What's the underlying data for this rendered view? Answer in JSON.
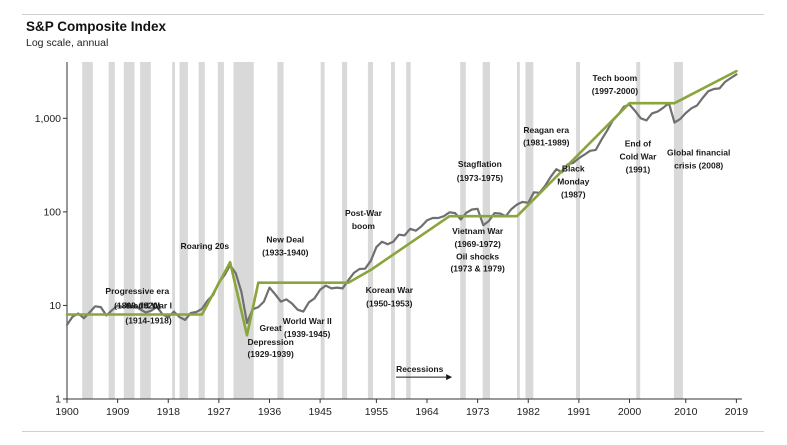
{
  "chart_data": {
    "type": "line",
    "title": "S&P Composite Index",
    "subtitle": "Log scale, annual",
    "xlim": [
      1900,
      2020
    ],
    "ylim": [
      1,
      4000
    ],
    "yscale": "log",
    "x_ticks": [
      1900,
      1909,
      1918,
      1927,
      1936,
      1945,
      1955,
      1964,
      1973,
      1982,
      1991,
      2000,
      2010,
      2019
    ],
    "y_ticks": [
      {
        "value": 1,
        "label": "1"
      },
      {
        "value": 10,
        "label": "10"
      },
      {
        "value": 100,
        "label": "100"
      },
      {
        "value": 1000,
        "label": "1,000"
      }
    ],
    "recessions_label": "Recessions",
    "recessions": [
      [
        1902.7,
        1904.6
      ],
      [
        1907.4,
        1908.5
      ],
      [
        1910.1,
        1912.0
      ],
      [
        1913.0,
        1914.9
      ],
      [
        1918.7,
        1919.2
      ],
      [
        1920.0,
        1921.5
      ],
      [
        1923.4,
        1924.5
      ],
      [
        1926.8,
        1927.9
      ],
      [
        1929.6,
        1933.2
      ],
      [
        1937.4,
        1938.5
      ],
      [
        1945.1,
        1945.8
      ],
      [
        1948.9,
        1949.8
      ],
      [
        1953.5,
        1954.4
      ],
      [
        1957.6,
        1958.3
      ],
      [
        1960.3,
        1961.1
      ],
      [
        1969.9,
        1970.9
      ],
      [
        1973.9,
        1975.2
      ],
      [
        1980.0,
        1980.5
      ],
      [
        1981.5,
        1982.9
      ],
      [
        1990.5,
        1991.2
      ],
      [
        2001.2,
        2001.9
      ],
      [
        2007.9,
        2009.5
      ]
    ],
    "series": [
      {
        "color": "#6f6f6f",
        "x": [
          1900,
          1901,
          1902,
          1903,
          1904,
          1905,
          1906,
          1907,
          1908,
          1909,
          1910,
          1911,
          1912,
          1913,
          1914,
          1915,
          1916,
          1917,
          1918,
          1919,
          1920,
          1921,
          1922,
          1923,
          1924,
          1925,
          1926,
          1927,
          1928,
          1929,
          1930,
          1931,
          1932,
          1933,
          1934,
          1935,
          1936,
          1937,
          1938,
          1939,
          1940,
          1941,
          1942,
          1943,
          1944,
          1945,
          1946,
          1947,
          1948,
          1949,
          1950,
          1951,
          1952,
          1953,
          1954,
          1955,
          1956,
          1957,
          1958,
          1959,
          1960,
          1961,
          1962,
          1963,
          1964,
          1965,
          1966,
          1967,
          1968,
          1969,
          1970,
          1971,
          1972,
          1973,
          1974,
          1975,
          1976,
          1977,
          1978,
          1979,
          1980,
          1981,
          1982,
          1983,
          1984,
          1985,
          1986,
          1987,
          1988,
          1989,
          1990,
          1991,
          1992,
          1993,
          1994,
          1995,
          1996,
          1997,
          1998,
          1999,
          2000,
          2001,
          2002,
          2003,
          2004,
          2005,
          2006,
          2007,
          2008,
          2009,
          2010,
          2011,
          2012,
          2013,
          2014,
          2015,
          2016,
          2017,
          2018,
          2019
        ],
        "values": [
          6.2,
          7.6,
          8.2,
          7.3,
          8.4,
          9.8,
          9.6,
          7.8,
          8.9,
          10,
          9.6,
          9.8,
          9.9,
          9.1,
          8.4,
          8.8,
          9.7,
          8,
          7.5,
          8.6,
          7.5,
          7,
          8.3,
          8.5,
          9.2,
          11.3,
          13,
          17.7,
          21,
          27,
          22,
          14,
          6.5,
          9.1,
          9.6,
          11,
          15.5,
          13.2,
          11,
          11.6,
          10.5,
          9,
          8.6,
          10.8,
          11.9,
          14.7,
          16.3,
          15.2,
          15.5,
          15.2,
          18.6,
          22.3,
          24.5,
          24.7,
          30,
          42,
          48,
          45,
          48,
          57,
          56,
          66,
          63,
          70,
          81,
          86,
          86,
          90,
          99,
          97,
          83,
          98,
          106,
          108,
          72,
          80,
          97,
          96,
          90,
          107,
          120,
          128,
          125,
          162,
          160,
          190,
          238,
          286,
          265,
          322,
          335,
          375,
          410,
          450,
          460,
          590,
          735,
          940,
          1100,
          1330,
          1400,
          1200,
          1000,
          950,
          1130,
          1180,
          1300,
          1450,
          900,
          980,
          1140,
          1280,
          1370,
          1650,
          1950,
          2060,
          2090,
          2450,
          2700,
          2950
        ]
      },
      {
        "color": "#8aa53c",
        "x": [
          1900,
          1924,
          1929,
          1932,
          1934,
          1950,
          1954,
          1968,
          1980,
          2000,
          2008,
          2019
        ],
        "values": [
          8,
          8,
          29,
          4.8,
          17.5,
          17.5,
          24,
          90,
          90,
          1450,
          1450,
          3200
        ]
      }
    ],
    "annotations": [
      {
        "text": "Progressive era",
        "x": 1912.5,
        "y": 13.2
      },
      {
        "text": "(1890-1920)",
        "x": 1912.5,
        "y": 9.3
      },
      {
        "text": "World War I",
        "x": 1914.5,
        "y": 9.3
      },
      {
        "text": "(1914-1918)",
        "x": 1914.5,
        "y": 6.4
      },
      {
        "text": "Roaring 20s",
        "x": 1924.5,
        "y": 40
      },
      {
        "text": "New Deal",
        "x": 1938.8,
        "y": 47
      },
      {
        "text": "(1933-1940)",
        "x": 1938.8,
        "y": 34
      },
      {
        "text": "Great",
        "x": 1936.2,
        "y": 5.3
      },
      {
        "text": "Depression",
        "x": 1936.2,
        "y": 3.8
      },
      {
        "text": "(1929-1939)",
        "x": 1936.2,
        "y": 2.8
      },
      {
        "text": "World War II",
        "x": 1942.7,
        "y": 6.3
      },
      {
        "text": "(1939-1945)",
        "x": 1942.7,
        "y": 4.6
      },
      {
        "text": "Post-War",
        "x": 1952.7,
        "y": 90
      },
      {
        "text": "boom",
        "x": 1952.7,
        "y": 66
      },
      {
        "text": "Korean War",
        "x": 1957.3,
        "y": 13.5
      },
      {
        "text": "(1950-1953)",
        "x": 1957.3,
        "y": 9.8
      },
      {
        "text": "Stagflation",
        "x": 1973.4,
        "y": 300
      },
      {
        "text": "(1973-1975)",
        "x": 1973.4,
        "y": 214
      },
      {
        "text": "Vietnam War",
        "x": 1973,
        "y": 58
      },
      {
        "text": "(1969-1972)",
        "x": 1973,
        "y": 42
      },
      {
        "text": "Oil shocks",
        "x": 1973,
        "y": 31
      },
      {
        "text": "(1973 & 1979)",
        "x": 1973,
        "y": 23
      },
      {
        "text": "Reagan era",
        "x": 1985.2,
        "y": 700
      },
      {
        "text": "(1981-1989)",
        "x": 1985.2,
        "y": 515
      },
      {
        "text": "Black",
        "x": 1990,
        "y": 270
      },
      {
        "text": "Monday",
        "x": 1990,
        "y": 196
      },
      {
        "text": "(1987)",
        "x": 1990,
        "y": 142
      },
      {
        "text": "End of",
        "x": 2001.5,
        "y": 500
      },
      {
        "text": "Cold War",
        "x": 2001.5,
        "y": 365
      },
      {
        "text": "(1991)",
        "x": 2001.5,
        "y": 265
      },
      {
        "text": "Tech boom",
        "x": 1997.4,
        "y": 2500
      },
      {
        "text": "(1997-2000)",
        "x": 1997.4,
        "y": 1820
      },
      {
        "text": "Global financial",
        "x": 2012.3,
        "y": 400
      },
      {
        "text": "crisis (2008)",
        "x": 2012.3,
        "y": 290
      }
    ]
  }
}
